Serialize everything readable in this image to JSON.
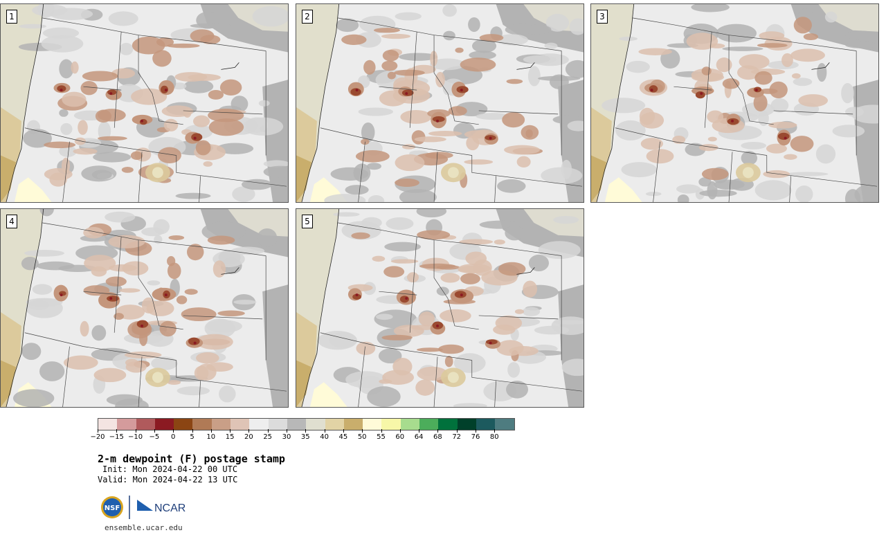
{
  "panels": [
    {
      "label": "1",
      "seed": 11
    },
    {
      "label": "2",
      "seed": 23
    },
    {
      "label": "3",
      "seed": 37
    },
    {
      "label": "4",
      "seed": 41
    },
    {
      "label": "5",
      "seed": 53
    }
  ],
  "legend": {
    "ticks": [
      "-20",
      "-15",
      "-10",
      "-5",
      "0",
      "5",
      "10",
      "15",
      "20",
      "25",
      "30",
      "35",
      "40",
      "45",
      "50",
      "55",
      "60",
      "64",
      "68",
      "72",
      "76",
      "80"
    ],
    "colors": [
      "#f4e4e2",
      "#d49b9c",
      "#b05a5c",
      "#8b1a22",
      "#8b4513",
      "#b07a56",
      "#c99f87",
      "#dfc4b6",
      "#eeeeee",
      "#dcdcdc",
      "#b8b8b8",
      "#e0dfd0",
      "#e2d3a5",
      "#c9ae6c",
      "#fffbd8",
      "#f7f7a8",
      "#a7dc8e",
      "#4cad5b",
      "#00713c",
      "#00402a",
      "#1c5a5e",
      "#4e7c80"
    ]
  },
  "title": "2-m dewpoint (F) postage stamp",
  "init": "Init: Mon 2024-04-22 00 UTC",
  "valid": "Valid: Mon 2024-04-22 13 UTC",
  "logo_nsf": "NSF",
  "logo_ncar": "NCAR",
  "site": "ensemble.ucar.edu",
  "map_colors": {
    "land": "#ececec",
    "light_gray": "#d6d6d6",
    "gray": "#b3b3b3",
    "brown_light": "#dcbfae",
    "brown": "#c4967c",
    "brown_dark": "#9a4a30",
    "red_dark": "#8b1a22",
    "ocean": "#e1dfcc",
    "tan": "#dcca9c",
    "gold": "#c9ae6c",
    "yellow": "#fffbd8",
    "border": "#444444"
  }
}
